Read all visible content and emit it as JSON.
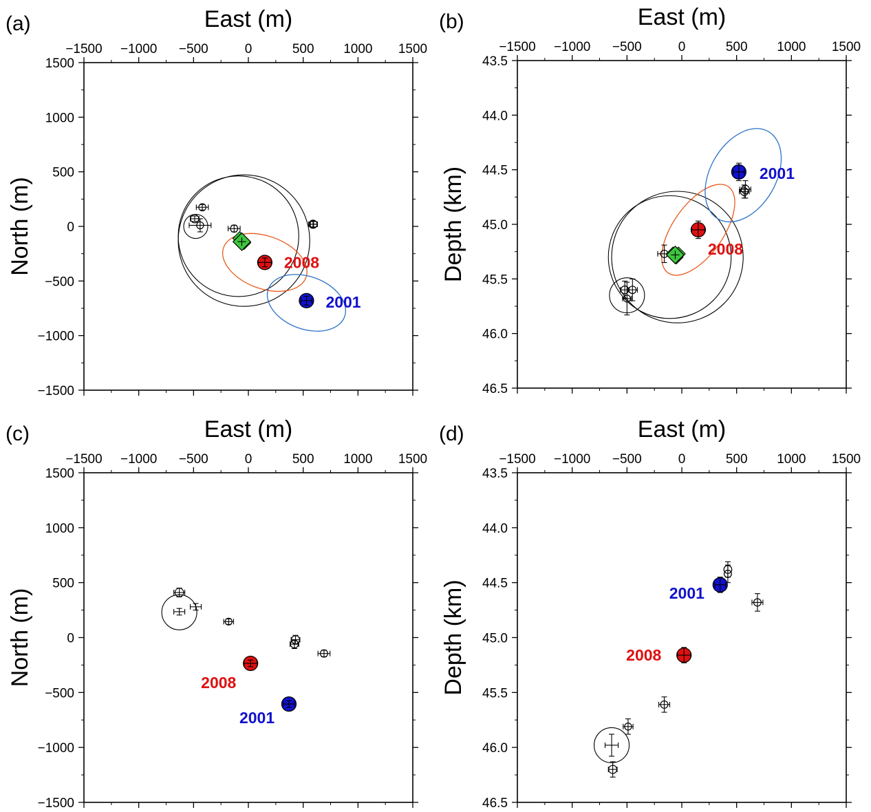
{
  "chart_data": [
    {
      "panel": "(a)",
      "type": "scatter",
      "xlabel": "East (m)",
      "ylabel": "North (m)",
      "xlim": [
        -1500,
        1500
      ],
      "ylim": [
        -1500,
        1500
      ],
      "y_inverted": false,
      "xticks": [
        "−1500",
        "−1000",
        "−500",
        "0",
        "500",
        "1000",
        "1500"
      ],
      "yticks": [
        "1500",
        "1000",
        "500",
        "0",
        "−500",
        "−1000",
        "−1500"
      ],
      "events": [
        {
          "label": "2008",
          "x": 150,
          "y": -330,
          "color": "#dd1111",
          "err_x": 60,
          "err_y": 40,
          "ellipse": {
            "cx": 150,
            "cy": -330,
            "rx": 400,
            "ry": 240,
            "angle": 20,
            "color": "#e85a1a"
          }
        },
        {
          "label": "2001",
          "x": 530,
          "y": -680,
          "color": "#1111cc",
          "err_x": 50,
          "err_y": 40,
          "ellipse": {
            "cx": 530,
            "cy": -700,
            "rx": 370,
            "ry": 240,
            "angle": 20,
            "color": "#2a72c8"
          }
        }
      ],
      "green_diamonds": [
        {
          "x": -60,
          "y": -140
        }
      ],
      "green_cluster": [
        {
          "x": -80,
          "y": -110
        },
        {
          "x": -55,
          "y": -130
        },
        {
          "x": -40,
          "y": -150
        },
        {
          "x": -60,
          "y": -125
        }
      ],
      "circles": [
        {
          "x": -90,
          "y": -90,
          "r": 550
        },
        {
          "x": -40,
          "y": -130,
          "r": 600
        },
        {
          "x": -480,
          "y": 0,
          "r": 110
        }
      ],
      "small_events": [
        {
          "x": -420,
          "y": 175,
          "r": 22,
          "err_x": 55,
          "err_y": 25
        },
        {
          "x": -490,
          "y": 70,
          "r": 35,
          "err_x": 40,
          "err_y": 25
        },
        {
          "x": -440,
          "y": 10,
          "r": 20,
          "err_x": 100,
          "err_y": 60
        },
        {
          "x": -130,
          "y": -20,
          "r": 24,
          "err_x": 55,
          "err_y": 30
        },
        {
          "x": 590,
          "y": 20,
          "r": 35,
          "err_x": 40,
          "err_y": 30
        },
        {
          "x": 595,
          "y": 20,
          "r": 25,
          "err_x": 30,
          "err_y": 25
        }
      ]
    },
    {
      "panel": "(b)",
      "type": "scatter",
      "xlabel": "East (m)",
      "ylabel": "Depth (km)",
      "xlim": [
        -1500,
        1500
      ],
      "ylim": [
        43.5,
        46.5
      ],
      "y_inverted": true,
      "xticks": [
        "−1500",
        "−1000",
        "−500",
        "0",
        "500",
        "1000",
        "1500"
      ],
      "yticks": [
        "43.5",
        "44.0",
        "44.5",
        "45.0",
        "45.5",
        "46.0",
        "46.5"
      ],
      "events": [
        {
          "label": "2008",
          "x": 150,
          "y": 45.05,
          "color": "#dd1111",
          "err_x": 60,
          "err_y": 0.08,
          "ellipse": {
            "cx": 150,
            "cy": 45.05,
            "rx": 480,
            "ry": 230,
            "angle": -55,
            "color": "#e85a1a"
          }
        },
        {
          "label": "2001",
          "x": 520,
          "y": 44.52,
          "color": "#1111cc",
          "err_x": 50,
          "err_y": 0.08,
          "ellipse": {
            "cx": 560,
            "cy": 44.55,
            "rx": 460,
            "ry": 300,
            "angle": -60,
            "color": "#2a72c8"
          }
        }
      ],
      "green_diamonds": [
        {
          "x": -60,
          "y": 45.28
        }
      ],
      "green_cluster": [
        {
          "x": -80,
          "y": 45.27
        },
        {
          "x": -50,
          "y": 45.3
        },
        {
          "x": -30,
          "y": 45.27
        }
      ],
      "circles": [
        {
          "x": -40,
          "y": 45.3,
          "r": 600
        },
        {
          "x": -110,
          "y": 45.3,
          "r": 560
        },
        {
          "x": -500,
          "y": 45.65,
          "r": 160
        }
      ],
      "small_events": [
        {
          "x": -160,
          "y": 45.27,
          "r": 25,
          "err_x": 60,
          "err_y": 0.08
        },
        {
          "x": -520,
          "y": 45.6,
          "r": 30,
          "err_x": 40,
          "err_y": 0.08
        },
        {
          "x": -450,
          "y": 45.6,
          "r": 25,
          "err_x": 45,
          "err_y": 0.1
        },
        {
          "x": -500,
          "y": 45.68,
          "r": 20,
          "err_x": 40,
          "err_y": 0.15
        },
        {
          "x": 580,
          "y": 44.68,
          "r": 35,
          "err_x": 50,
          "err_y": 0.08
        },
        {
          "x": 570,
          "y": 44.7,
          "r": 30,
          "err_x": 45,
          "err_y": 0.06
        }
      ]
    },
    {
      "panel": "(c)",
      "type": "scatter",
      "xlabel": "East (m)",
      "ylabel": "North (m)",
      "xlim": [
        -1500,
        1500
      ],
      "ylim": [
        -1500,
        1500
      ],
      "y_inverted": false,
      "xticks": [
        "−1500",
        "−1000",
        "−500",
        "0",
        "500",
        "1000",
        "1500"
      ],
      "yticks": [
        "1500",
        "1000",
        "500",
        "0",
        "−500",
        "−1000",
        "−1500"
      ],
      "events": [
        {
          "label": "2008",
          "x": 20,
          "y": -235,
          "color": "#dd1111",
          "err_x": 60,
          "err_y": 30
        },
        {
          "label": "2001",
          "x": 370,
          "y": -605,
          "color": "#1111cc",
          "err_x": 50,
          "err_y": 30
        }
      ],
      "green_diamonds": [],
      "green_cluster": [],
      "circles": [
        {
          "x": -630,
          "y": 230,
          "r": 160
        }
      ],
      "small_events": [
        {
          "x": -630,
          "y": 410,
          "r": 40,
          "err_x": 50,
          "err_y": 40
        },
        {
          "x": -630,
          "y": 235,
          "r": 0,
          "err_x": 50,
          "err_y": 30
        },
        {
          "x": -480,
          "y": 280,
          "r": 0,
          "err_x": 50,
          "err_y": 30
        },
        {
          "x": -180,
          "y": 145,
          "r": 18,
          "err_x": 45,
          "err_y": 25
        },
        {
          "x": 430,
          "y": -20,
          "r": 35,
          "err_x": 40,
          "err_y": 40
        },
        {
          "x": 420,
          "y": -60,
          "r": 30,
          "err_x": 40,
          "err_y": 40
        },
        {
          "x": 690,
          "y": -145,
          "r": 25,
          "err_x": 55,
          "err_y": 30
        }
      ]
    },
    {
      "panel": "(d)",
      "type": "scatter",
      "xlabel": "East (m)",
      "ylabel": "Depth (km)",
      "xlim": [
        -1500,
        1500
      ],
      "ylim": [
        43.5,
        46.5
      ],
      "y_inverted": true,
      "xticks": [
        "−1500",
        "−1000",
        "−500",
        "0",
        "500",
        "1000",
        "1500"
      ],
      "yticks": [
        "43.5",
        "44.0",
        "44.5",
        "45.0",
        "45.5",
        "46.0",
        "46.5"
      ],
      "events": [
        {
          "label": "2008",
          "x": 20,
          "y": 45.16,
          "color": "#dd1111",
          "err_x": 60,
          "err_y": 0.07
        },
        {
          "label": "2001",
          "x": 350,
          "y": 44.52,
          "color": "#1111cc",
          "err_x": 50,
          "err_y": 0.07
        }
      ],
      "green_diamonds": [],
      "green_cluster": [],
      "circles": [
        {
          "x": -640,
          "y": 45.98,
          "r": 160
        }
      ],
      "small_events": [
        {
          "x": 420,
          "y": 44.38,
          "r": 32,
          "err_x": 0,
          "err_y": 0.07
        },
        {
          "x": 420,
          "y": 44.42,
          "r": 25,
          "err_x": 0,
          "err_y": 0.08
        },
        {
          "x": 690,
          "y": 44.68,
          "r": 25,
          "err_x": 50,
          "err_y": 0.08
        },
        {
          "x": -160,
          "y": 45.61,
          "r": 25,
          "err_x": 50,
          "err_y": 0.07
        },
        {
          "x": -490,
          "y": 45.81,
          "r": 20,
          "err_x": 45,
          "err_y": 0.07
        },
        {
          "x": -640,
          "y": 45.98,
          "r": 0,
          "err_x": 60,
          "err_y": 0.1
        },
        {
          "x": -630,
          "y": 46.2,
          "r": 35,
          "err_x": 40,
          "err_y": 0.07
        }
      ]
    }
  ]
}
